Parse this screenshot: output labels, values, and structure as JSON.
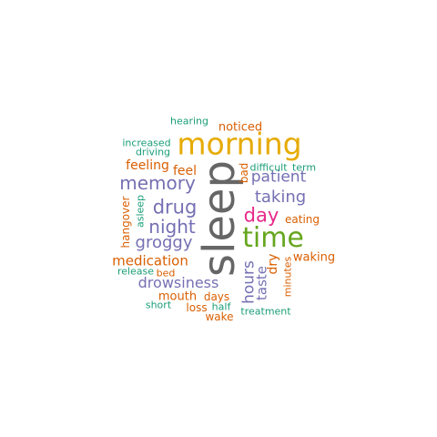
{
  "colors": {
    "gray": "#666666",
    "gold": "#E6AB02",
    "green": "#66A61E",
    "magenta": "#E7298A",
    "purple": "#7570B3",
    "orange": "#D95F02",
    "teal": "#1B9E77"
  },
  "words": [
    {
      "text": "sleep",
      "color": "gray"
    },
    {
      "text": "morning",
      "color": "gold"
    },
    {
      "text": "time",
      "color": "green"
    },
    {
      "text": "day",
      "color": "magenta"
    },
    {
      "text": "memory",
      "color": "purple"
    },
    {
      "text": "drug",
      "color": "purple"
    },
    {
      "text": "night",
      "color": "purple"
    },
    {
      "text": "groggy",
      "color": "purple"
    },
    {
      "text": "taking",
      "color": "purple"
    },
    {
      "text": "patient",
      "color": "purple"
    },
    {
      "text": "drowsiness",
      "color": "purple"
    },
    {
      "text": "hours",
      "color": "purple"
    },
    {
      "text": "taste",
      "color": "purple"
    },
    {
      "text": "medication",
      "color": "orange"
    },
    {
      "text": "feeling",
      "color": "orange"
    },
    {
      "text": "feel",
      "color": "orange"
    },
    {
      "text": "noticed",
      "color": "orange"
    },
    {
      "text": "hangover",
      "color": "orange"
    },
    {
      "text": "bad",
      "color": "orange"
    },
    {
      "text": "eating",
      "color": "orange"
    },
    {
      "text": "waking",
      "color": "orange"
    },
    {
      "text": "dry",
      "color": "orange"
    },
    {
      "text": "minutes",
      "color": "orange"
    },
    {
      "text": "mouth",
      "color": "orange"
    },
    {
      "text": "days",
      "color": "orange"
    },
    {
      "text": "loss",
      "color": "orange"
    },
    {
      "text": "wake",
      "color": "orange"
    },
    {
      "text": "bed",
      "color": "orange"
    },
    {
      "text": "hearing",
      "color": "teal"
    },
    {
      "text": "increased",
      "color": "teal"
    },
    {
      "text": "driving",
      "color": "teal"
    },
    {
      "text": "asleep",
      "color": "teal"
    },
    {
      "text": "difficult",
      "color": "teal"
    },
    {
      "text": "term",
      "color": "teal"
    },
    {
      "text": "release",
      "color": "teal"
    },
    {
      "text": "short",
      "color": "teal"
    },
    {
      "text": "half",
      "color": "teal"
    },
    {
      "text": "treatment",
      "color": "teal"
    }
  ]
}
